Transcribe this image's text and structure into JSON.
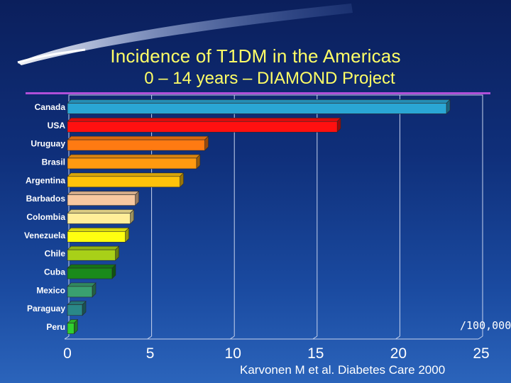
{
  "header": {
    "title": "Incidence of T1DM in the Americas",
    "subtitle": "0 – 14 years – DIAMOND Project"
  },
  "footer": {
    "unit_label": "/100,000",
    "source": "Karvonen M et al. Diabetes Care 2000"
  },
  "colors": {
    "title": "#ffff66",
    "divider": "#b04fd8",
    "text": "#ffffff"
  },
  "chart_data": {
    "type": "bar",
    "orientation": "horizontal",
    "categories": [
      "Canada",
      "USA",
      "Uruguay",
      "Brasil",
      "Argentina",
      "Barbados",
      "Colombia",
      "Venezuela",
      "Chile",
      "Cuba",
      "Mexico",
      "Paraguay",
      "Peru"
    ],
    "values": [
      22.9,
      16.3,
      8.3,
      7.8,
      6.8,
      4.1,
      3.8,
      3.5,
      2.9,
      2.7,
      1.5,
      0.9,
      0.4
    ],
    "colors": [
      "#2aa6d4",
      "#ff1010",
      "#ff7a12",
      "#ff9a10",
      "#ffc20a",
      "#f7c8a0",
      "#ffee99",
      "#ffff10",
      "#a8d018",
      "#1a8a1a",
      "#3aa070",
      "#2a8888",
      "#30d030"
    ],
    "xlim": [
      0,
      25
    ],
    "xticks": [
      0,
      5,
      10,
      15,
      20,
      25
    ],
    "xlabel": "",
    "ylabel": "",
    "grid": true
  }
}
